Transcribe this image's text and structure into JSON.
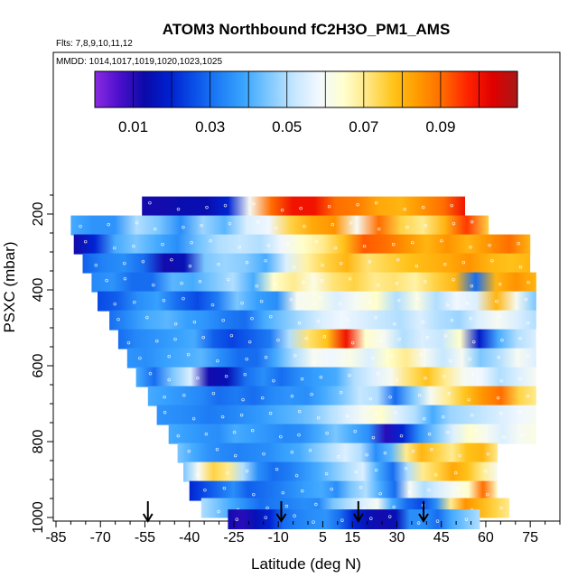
{
  "chart_data": {
    "type": "heatmap",
    "title": "ATOM3 Northbound fC2H3O_PM1_AMS",
    "subtitle_flights": "Flts: 7,8,9,10,11,12",
    "subtitle_dates": "MMDD: 1014,1017,1019,1020,1023,1025",
    "xlabel": "Latitude (deg N)",
    "ylabel": "PSXC (mbar)",
    "xlim": [
      -85,
      85
    ],
    "ylim": [
      1020,
      0
    ],
    "x_ticks": [
      -85,
      -70,
      -55,
      -40,
      -25,
      -10,
      5,
      15,
      30,
      45,
      60,
      75
    ],
    "x_tick_labels": [
      "-85",
      "-70",
      "-55",
      "-40",
      "-25",
      "-10",
      "5",
      "15",
      "30",
      "45",
      "60",
      "75"
    ],
    "y_ticks": [
      200,
      400,
      600,
      800,
      1000
    ],
    "y_tick_labels": [
      "200",
      "400",
      "600",
      "800",
      "1000"
    ],
    "colorbar": {
      "min": 0.0,
      "max": 0.11,
      "tick_values": [
        0.01,
        0.03,
        0.05,
        0.07,
        0.09
      ],
      "tick_labels": [
        "0.01",
        "0.03",
        "0.05",
        "0.07",
        "0.09"
      ],
      "colors": [
        "#8a2be2",
        "#4b0fcc",
        "#0a0aa8",
        "#0020d0",
        "#0a50e8",
        "#1e7ef5",
        "#3aa5ff",
        "#7ec8ff",
        "#c4e6ff",
        "#f2f8ff",
        "#ffffd0",
        "#ffe680",
        "#ffc41a",
        "#ff9a00",
        "#ff6a00",
        "#ff2200",
        "#e00000",
        "#a81818"
      ]
    },
    "flight_markers_latitude": [
      -54,
      -9,
      17,
      39
    ],
    "bands": [
      {
        "p": 180,
        "lat": [
          -56,
          53
        ],
        "v": [
          0.012,
          0.012,
          0.014,
          0.014,
          0.02,
          0.06,
          0.09,
          0.1,
          0.1,
          0.09,
          0.088,
          0.082,
          0.08,
          0.085,
          0.09,
          0.1
        ]
      },
      {
        "p": 230,
        "lat": [
          -80,
          61
        ],
        "v": [
          0.04,
          0.036,
          0.036,
          0.05,
          0.045,
          0.035,
          0.048,
          0.042,
          0.055,
          0.058,
          0.075,
          0.082,
          0.085,
          0.06,
          0.09,
          0.075,
          0.07,
          0.08,
          0.095,
          0.075
        ]
      },
      {
        "p": 280,
        "lat": [
          -79,
          75
        ],
        "v": [
          0.012,
          0.02,
          0.04,
          0.045,
          0.04,
          0.035,
          0.044,
          0.05,
          0.052,
          0.05,
          0.058,
          0.065,
          0.07,
          0.078,
          0.092,
          0.09,
          0.085,
          0.08,
          0.085,
          0.08,
          0.085,
          0.09,
          0.08
        ]
      },
      {
        "p": 330,
        "lat": [
          -76,
          75
        ],
        "v": [
          0.028,
          0.033,
          0.035,
          0.03,
          0.012,
          0.015,
          0.045,
          0.048,
          0.046,
          0.04,
          0.055,
          0.068,
          0.075,
          0.08,
          0.072,
          0.075,
          0.078,
          0.08,
          0.082,
          0.085,
          0.08,
          0.078,
          0.08
        ]
      },
      {
        "p": 380,
        "lat": [
          -73,
          77
        ],
        "v": [
          0.034,
          0.036,
          0.03,
          0.03,
          0.042,
          0.04,
          0.045,
          0.05,
          0.04,
          0.065,
          0.07,
          0.062,
          0.072,
          0.075,
          0.07,
          0.072,
          0.068,
          0.075,
          0.08,
          0.03,
          0.08,
          0.085,
          0.08
        ]
      },
      {
        "p": 430,
        "lat": [
          -71,
          77
        ],
        "v": [
          0.025,
          0.028,
          0.035,
          0.038,
          0.03,
          0.025,
          0.032,
          0.045,
          0.038,
          0.035,
          0.06,
          0.062,
          0.055,
          0.06,
          0.065,
          0.05,
          0.062,
          0.05,
          0.058,
          0.055,
          0.08,
          0.06,
          0.045
        ]
      },
      {
        "p": 480,
        "lat": [
          -67,
          77
        ],
        "v": [
          0.03,
          0.035,
          0.04,
          0.042,
          0.038,
          0.036,
          0.032,
          0.03,
          0.04,
          0.045,
          0.05,
          0.055,
          0.058,
          0.055,
          0.052,
          0.05,
          0.055,
          0.05,
          0.048,
          0.055,
          0.06,
          0.055,
          0.05
        ]
      },
      {
        "p": 530,
        "lat": [
          -64,
          77
        ],
        "v": [
          0.03,
          0.034,
          0.036,
          0.038,
          0.04,
          0.028,
          0.024,
          0.028,
          0.032,
          0.05,
          0.072,
          0.078,
          0.1,
          0.065,
          0.06,
          0.05,
          0.055,
          0.052,
          0.065,
          0.018,
          0.04,
          0.05,
          0.055
        ]
      },
      {
        "p": 580,
        "lat": [
          -61,
          77
        ],
        "v": [
          0.036,
          0.035,
          0.038,
          0.04,
          0.042,
          0.035,
          0.03,
          0.03,
          0.04,
          0.05,
          0.06,
          0.058,
          0.062,
          0.055,
          0.065,
          0.07,
          0.06,
          0.052,
          0.06,
          0.045,
          0.05,
          0.06,
          0.055
        ]
      },
      {
        "p": 630,
        "lat": [
          -58,
          77
        ],
        "v": [
          0.04,
          0.03,
          0.045,
          0.055,
          0.012,
          0.015,
          0.03,
          0.035,
          0.03,
          0.035,
          0.038,
          0.04,
          0.05,
          0.055,
          0.06,
          0.072,
          0.078,
          0.07,
          0.06,
          0.058,
          0.05,
          0.055,
          0.06
        ]
      },
      {
        "p": 680,
        "lat": [
          -54,
          77
        ],
        "v": [
          0.04,
          0.038,
          0.036,
          0.034,
          0.03,
          0.032,
          0.03,
          0.034,
          0.036,
          0.035,
          0.04,
          0.045,
          0.052,
          0.05,
          0.03,
          0.045,
          0.06,
          0.07,
          0.078,
          0.085,
          0.09,
          0.075,
          0.07
        ]
      },
      {
        "p": 730,
        "lat": [
          -51,
          77
        ],
        "v": [
          0.036,
          0.035,
          0.034,
          0.032,
          0.033,
          0.035,
          0.037,
          0.04,
          0.042,
          0.045,
          0.05,
          0.055,
          0.06,
          0.065,
          0.055,
          0.05,
          0.04,
          0.048,
          0.05,
          0.052,
          0.055,
          0.058,
          0.06
        ]
      },
      {
        "p": 780,
        "lat": [
          -47,
          77
        ],
        "v": [
          0.04,
          0.038,
          0.036,
          0.035,
          0.04,
          0.038,
          0.036,
          0.034,
          0.035,
          0.04,
          0.045,
          0.04,
          0.035,
          0.01,
          0.02,
          0.035,
          0.045,
          0.055,
          0.065,
          0.06,
          0.055,
          0.06,
          0.062
        ]
      },
      {
        "p": 830,
        "lat": [
          -44,
          64
        ],
        "v": [
          0.045,
          0.04,
          0.036,
          0.034,
          0.033,
          0.034,
          0.035,
          0.038,
          0.04,
          0.045,
          0.05,
          0.055,
          0.05,
          0.035,
          0.042,
          0.07,
          0.08,
          0.075,
          0.07,
          0.078,
          0.08,
          0.07
        ]
      },
      {
        "p": 880,
        "lat": [
          -42,
          64
        ],
        "v": [
          0.045,
          0.06,
          0.075,
          0.07,
          0.05,
          0.035,
          0.03,
          0.032,
          0.036,
          0.04,
          0.045,
          0.05,
          0.055,
          0.04,
          0.03,
          0.05,
          0.07,
          0.075,
          0.082,
          0.078,
          0.07,
          0.06
        ]
      },
      {
        "p": 930,
        "lat": [
          -40,
          64
        ],
        "v": [
          0.02,
          0.025,
          0.03,
          0.035,
          0.028,
          0.03,
          0.032,
          0.035,
          0.038,
          0.04,
          0.035,
          0.045,
          0.05,
          0.04,
          0.03,
          0.06,
          0.05,
          0.055,
          0.06,
          0.065,
          0.09,
          0.065
        ]
      },
      {
        "p": 975,
        "lat": [
          -36,
          68
        ],
        "v": [
          0.05,
          0.045,
          0.04,
          0.035,
          0.03,
          0.032,
          0.033,
          0.035,
          0.034,
          0.045,
          0.05,
          0.055,
          0.06,
          0.04,
          0.03,
          0.025,
          0.035,
          0.07,
          0.085,
          0.08,
          0.075,
          0.07
        ]
      },
      {
        "p": 1005,
        "lat": [
          -27,
          58
        ],
        "v": [
          0.012,
          0.01,
          0.015,
          0.02,
          0.03,
          0.033,
          0.035,
          0.036,
          0.03,
          0.02,
          0.015,
          0.012,
          0.015,
          0.035,
          0.035,
          0.03,
          0.04,
          0.045,
          0.05
        ]
      }
    ]
  }
}
